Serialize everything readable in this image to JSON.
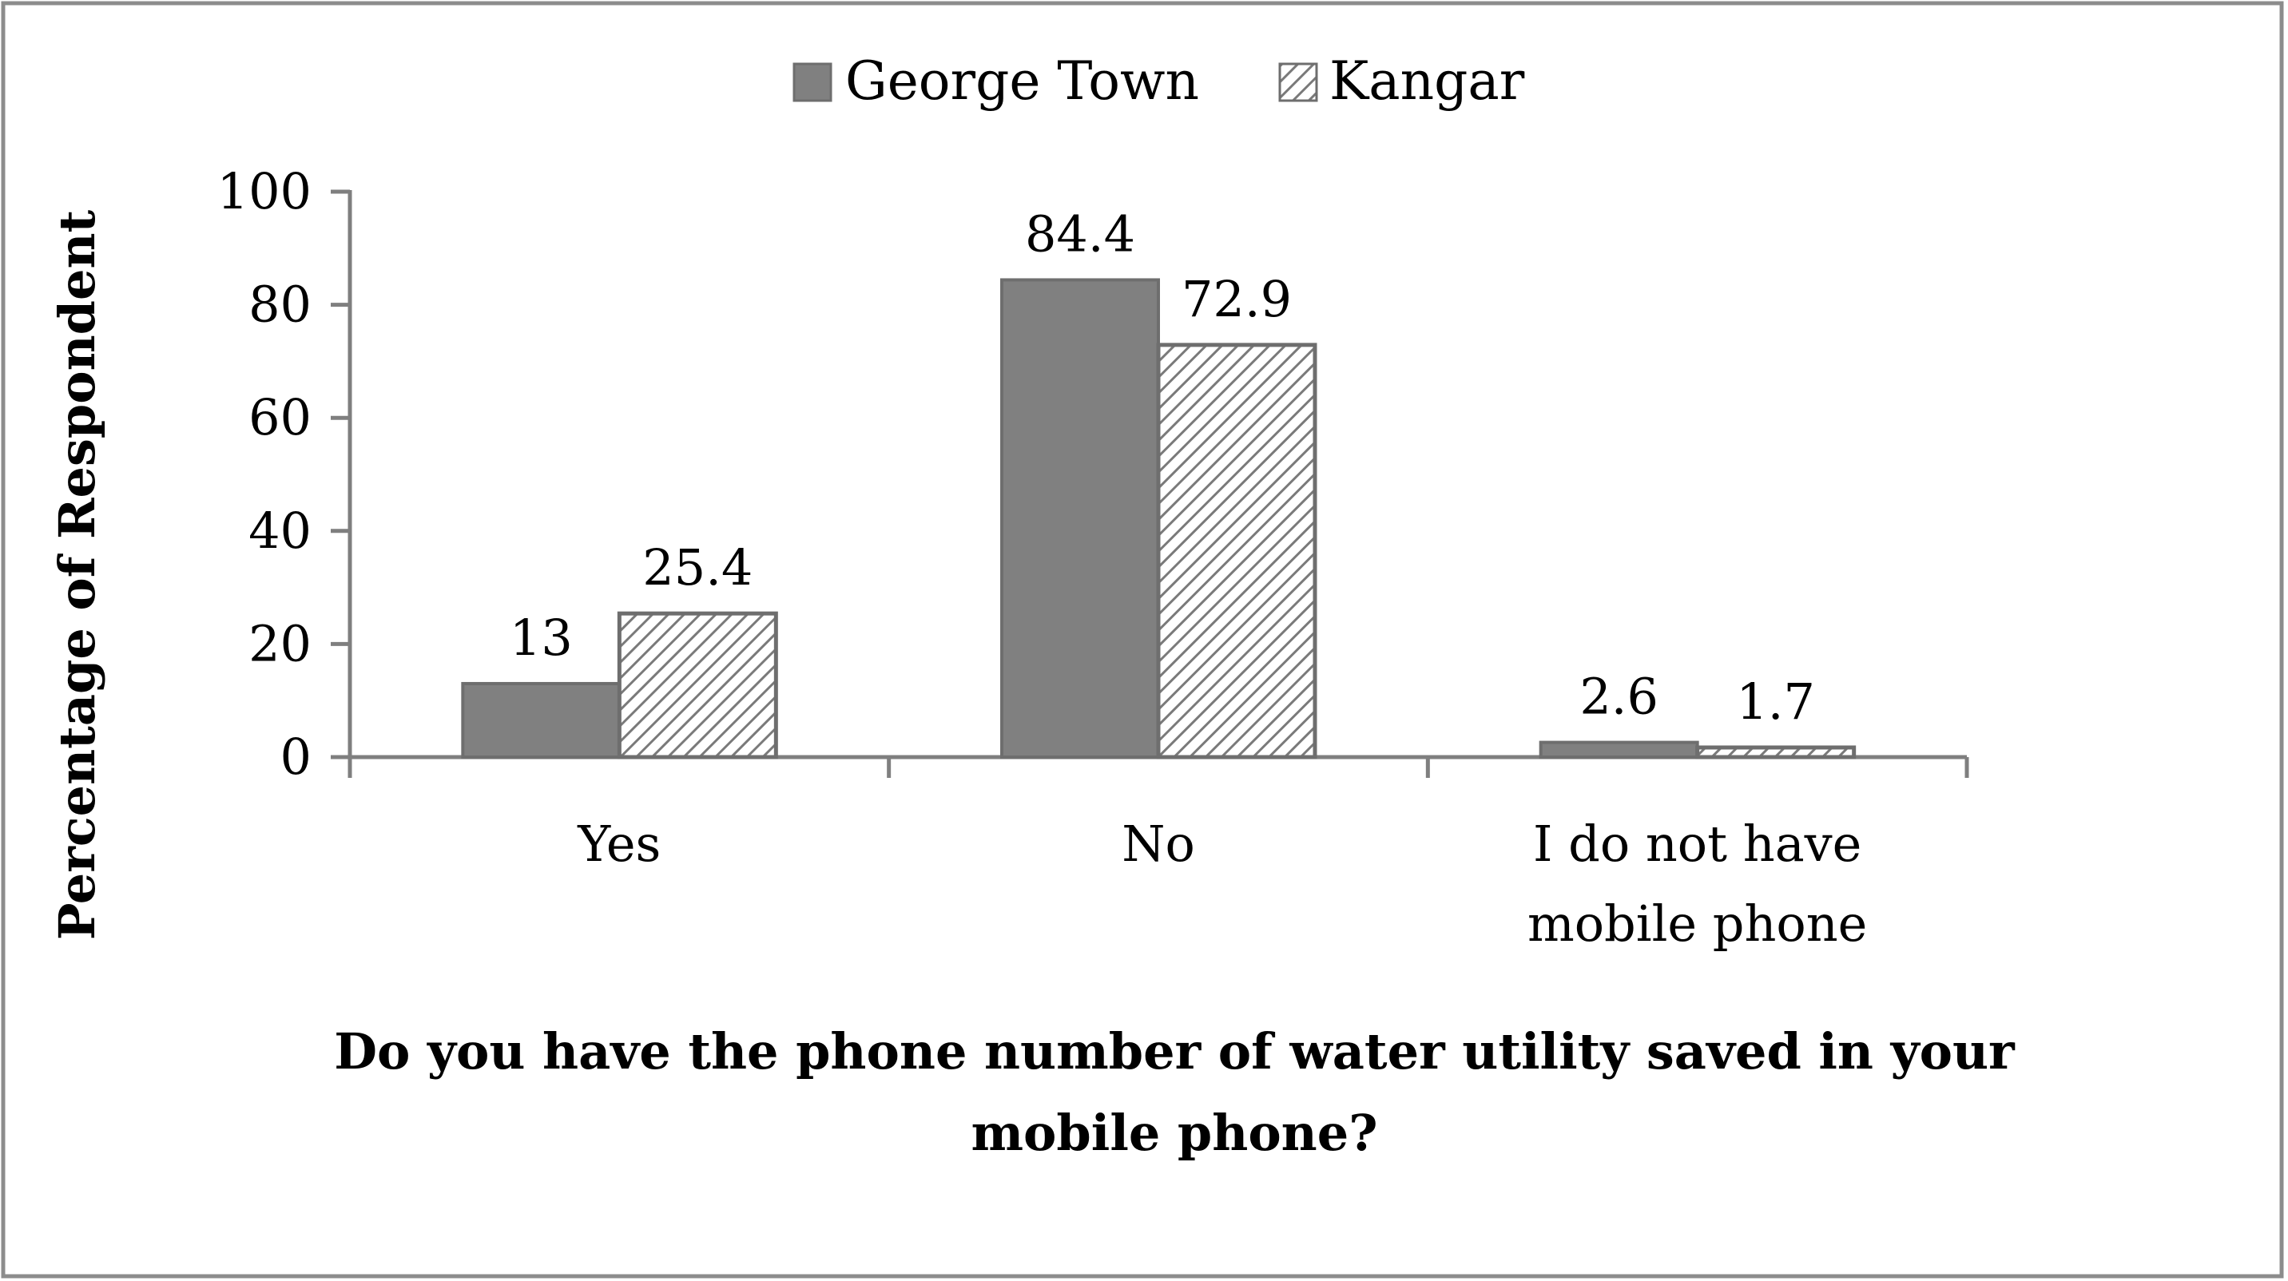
{
  "chart_data": {
    "type": "bar",
    "categories": [
      [
        "Yes"
      ],
      [
        "No"
      ],
      [
        "I do not have",
        "mobile phone"
      ]
    ],
    "series": [
      {
        "name": "George Town",
        "values": [
          13,
          84.4,
          2.6
        ],
        "labels": [
          "13",
          "84.4",
          "2.6"
        ],
        "color": "#808080",
        "pattern": "solid"
      },
      {
        "name": "Kangar",
        "values": [
          25.4,
          72.9,
          1.7
        ],
        "labels": [
          "25.4",
          "72.9",
          "1.7"
        ],
        "color": "#808080",
        "pattern": "hatched"
      }
    ],
    "ylim": [
      0,
      100
    ],
    "yticks": [
      0,
      20,
      40,
      60,
      80,
      100
    ],
    "ylabel": "Percentage of Respondent",
    "xlabel_lines": [
      "Do you have the phone number of water utility saved in your",
      "mobile phone?"
    ],
    "legend_position": "top-center",
    "grid": false
  }
}
